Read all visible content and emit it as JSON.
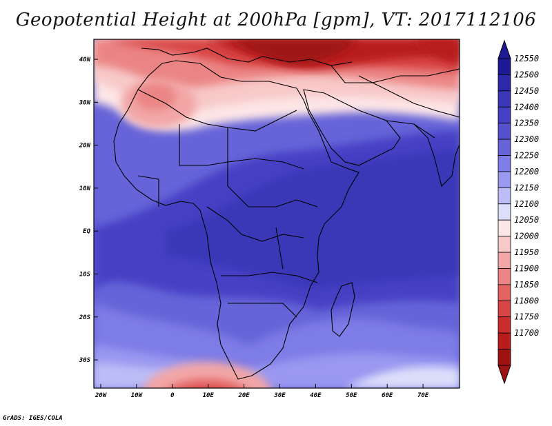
{
  "title": "Geopotential Height at 200hPa [gpm], VT: 2017112106",
  "footer": "GrADS: IGES/COLA",
  "lat_labels": [
    "40N",
    "30N",
    "20N",
    "10N",
    "EQ",
    "10S",
    "20S",
    "30S"
  ],
  "lon_labels": [
    "20W",
    "10W",
    "0",
    "10E",
    "20E",
    "30E",
    "40E",
    "50E",
    "60E",
    "70E"
  ],
  "colorbar": {
    "labels": [
      "12550",
      "12500",
      "12450",
      "12400",
      "12350",
      "12300",
      "12250",
      "12200",
      "12150",
      "12100",
      "12050",
      "12000",
      "11950",
      "11900",
      "11850",
      "11800",
      "11750",
      "11700"
    ],
    "colors": [
      "#1e1a96",
      "#2b28aa",
      "#3a37b8",
      "#4641c4",
      "#5551cc",
      "#6664d8",
      "#7e7ce6",
      "#9a98f0",
      "#bcbdf6",
      "#dcdffa",
      "#fde6e6",
      "#f8c9c9",
      "#f2a6a6",
      "#eb8585",
      "#e36262",
      "#d84545",
      "#cb2d2d",
      "#b81c1c",
      "#9e1212"
    ]
  },
  "colors": {
    "frame": "#000000",
    "land_outline": "#000000"
  }
}
